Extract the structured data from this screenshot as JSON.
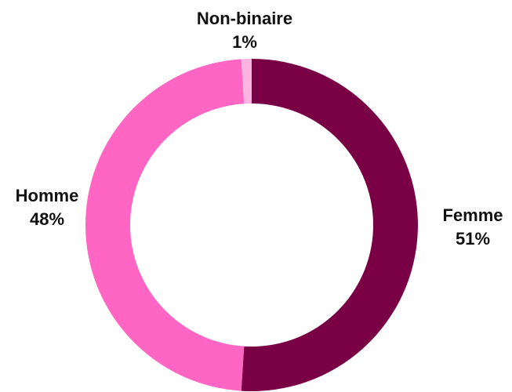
{
  "chart_data": {
    "type": "pie",
    "donut": true,
    "categories": [
      "Femme",
      "Homme",
      "Non-binaire"
    ],
    "values": [
      51,
      48,
      1
    ],
    "value_labels": [
      "51%",
      "48%",
      "1%"
    ],
    "colors": [
      "#7a0046",
      "#ff66c4",
      "#ffb3e0"
    ]
  }
}
